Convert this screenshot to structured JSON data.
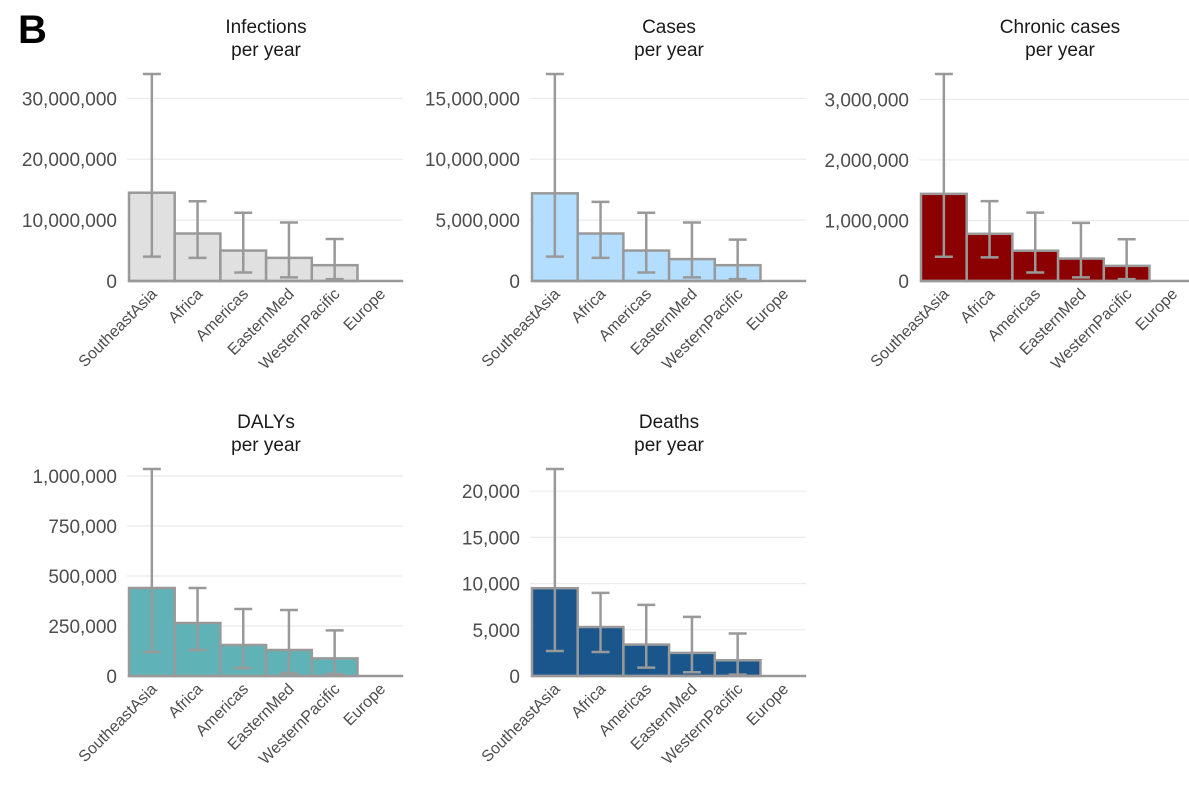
{
  "figure": {
    "panel_label": "B"
  },
  "chart_data": [
    {
      "type": "bar",
      "title": [
        "Infections",
        "per year"
      ],
      "categories": [
        "SoutheastAsia",
        "Africa",
        "Americas",
        "EasternMed",
        "WesternPacific",
        "Europe"
      ],
      "values": [
        14500000,
        7800000,
        5000000,
        3800000,
        2600000,
        0
      ],
      "error_low": [
        4000000,
        3800000,
        1400000,
        600000,
        300000,
        0
      ],
      "error_high": [
        34000000,
        13100000,
        11200000,
        9600000,
        6900000,
        0
      ],
      "ylim": [
        0,
        34000000
      ],
      "yticks": [
        0,
        10000000,
        20000000,
        30000000
      ],
      "ytick_labels": [
        "0",
        "10,000,000",
        "20,000,000",
        "30,000,000"
      ],
      "fill": "#e0e0e0",
      "grid": true
    },
    {
      "type": "bar",
      "title": [
        "Cases",
        "per year"
      ],
      "categories": [
        "SoutheastAsia",
        "Africa",
        "Americas",
        "EasternMed",
        "WesternPacific",
        "Europe"
      ],
      "values": [
        7200000,
        3900000,
        2500000,
        1800000,
        1300000,
        0
      ],
      "error_low": [
        2000000,
        1900000,
        700000,
        300000,
        150000,
        0
      ],
      "error_high": [
        17000000,
        6500000,
        5600000,
        4800000,
        3400000,
        0
      ],
      "ylim": [
        0,
        17000000
      ],
      "yticks": [
        0,
        5000000,
        10000000,
        15000000
      ],
      "ytick_labels": [
        "0",
        "5,000,000",
        "10,000,000",
        "15,000,000"
      ],
      "fill": "#b3deff",
      "grid": true
    },
    {
      "type": "bar",
      "title": [
        "Chronic cases",
        "per year"
      ],
      "categories": [
        "SoutheastAsia",
        "Africa",
        "Americas",
        "EasternMed",
        "WesternPacific",
        "Europe"
      ],
      "values": [
        1440000,
        780000,
        500000,
        370000,
        250000,
        0
      ],
      "error_low": [
        400000,
        390000,
        140000,
        60000,
        30000,
        0
      ],
      "error_high": [
        3420000,
        1320000,
        1130000,
        960000,
        690000,
        0
      ],
      "ylim": [
        0,
        3420000
      ],
      "yticks": [
        0,
        1000000,
        2000000,
        3000000
      ],
      "ytick_labels": [
        "0",
        "1,000,000",
        "2,000,000",
        "3,000,000"
      ],
      "fill": "#8b0000",
      "grid": true
    },
    {
      "type": "bar",
      "title": [
        "DALYs",
        "per year"
      ],
      "categories": [
        "SoutheastAsia",
        "Africa",
        "Americas",
        "EasternMed",
        "WesternPacific",
        "Europe"
      ],
      "values": [
        440000,
        265000,
        155000,
        130000,
        88000,
        0
      ],
      "error_low": [
        120000,
        130000,
        40000,
        15000,
        10000,
        0
      ],
      "error_high": [
        1035000,
        440000,
        335000,
        330000,
        228000,
        0
      ],
      "ylim": [
        0,
        1035000
      ],
      "yticks": [
        0,
        250000,
        500000,
        750000,
        1000000
      ],
      "ytick_labels": [
        "0",
        "250,000",
        "500,000",
        "750,000",
        "1,000,000"
      ],
      "fill": "#5fb3b6",
      "grid": true
    },
    {
      "type": "bar",
      "title": [
        "Deaths",
        "per year"
      ],
      "categories": [
        "SoutheastAsia",
        "Africa",
        "Americas",
        "EasternMed",
        "WesternPacific",
        "Europe"
      ],
      "values": [
        9500,
        5300,
        3400,
        2500,
        1700,
        0
      ],
      "error_low": [
        2700,
        2600,
        900,
        400,
        150,
        0
      ],
      "error_high": [
        22400,
        9000,
        7700,
        6400,
        4600,
        0
      ],
      "ylim": [
        0,
        22400
      ],
      "yticks": [
        0,
        5000,
        10000,
        15000,
        20000
      ],
      "ytick_labels": [
        "0",
        "5,000",
        "10,000",
        "15,000",
        "20,000"
      ],
      "fill": "#1a568c",
      "grid": true
    }
  ]
}
